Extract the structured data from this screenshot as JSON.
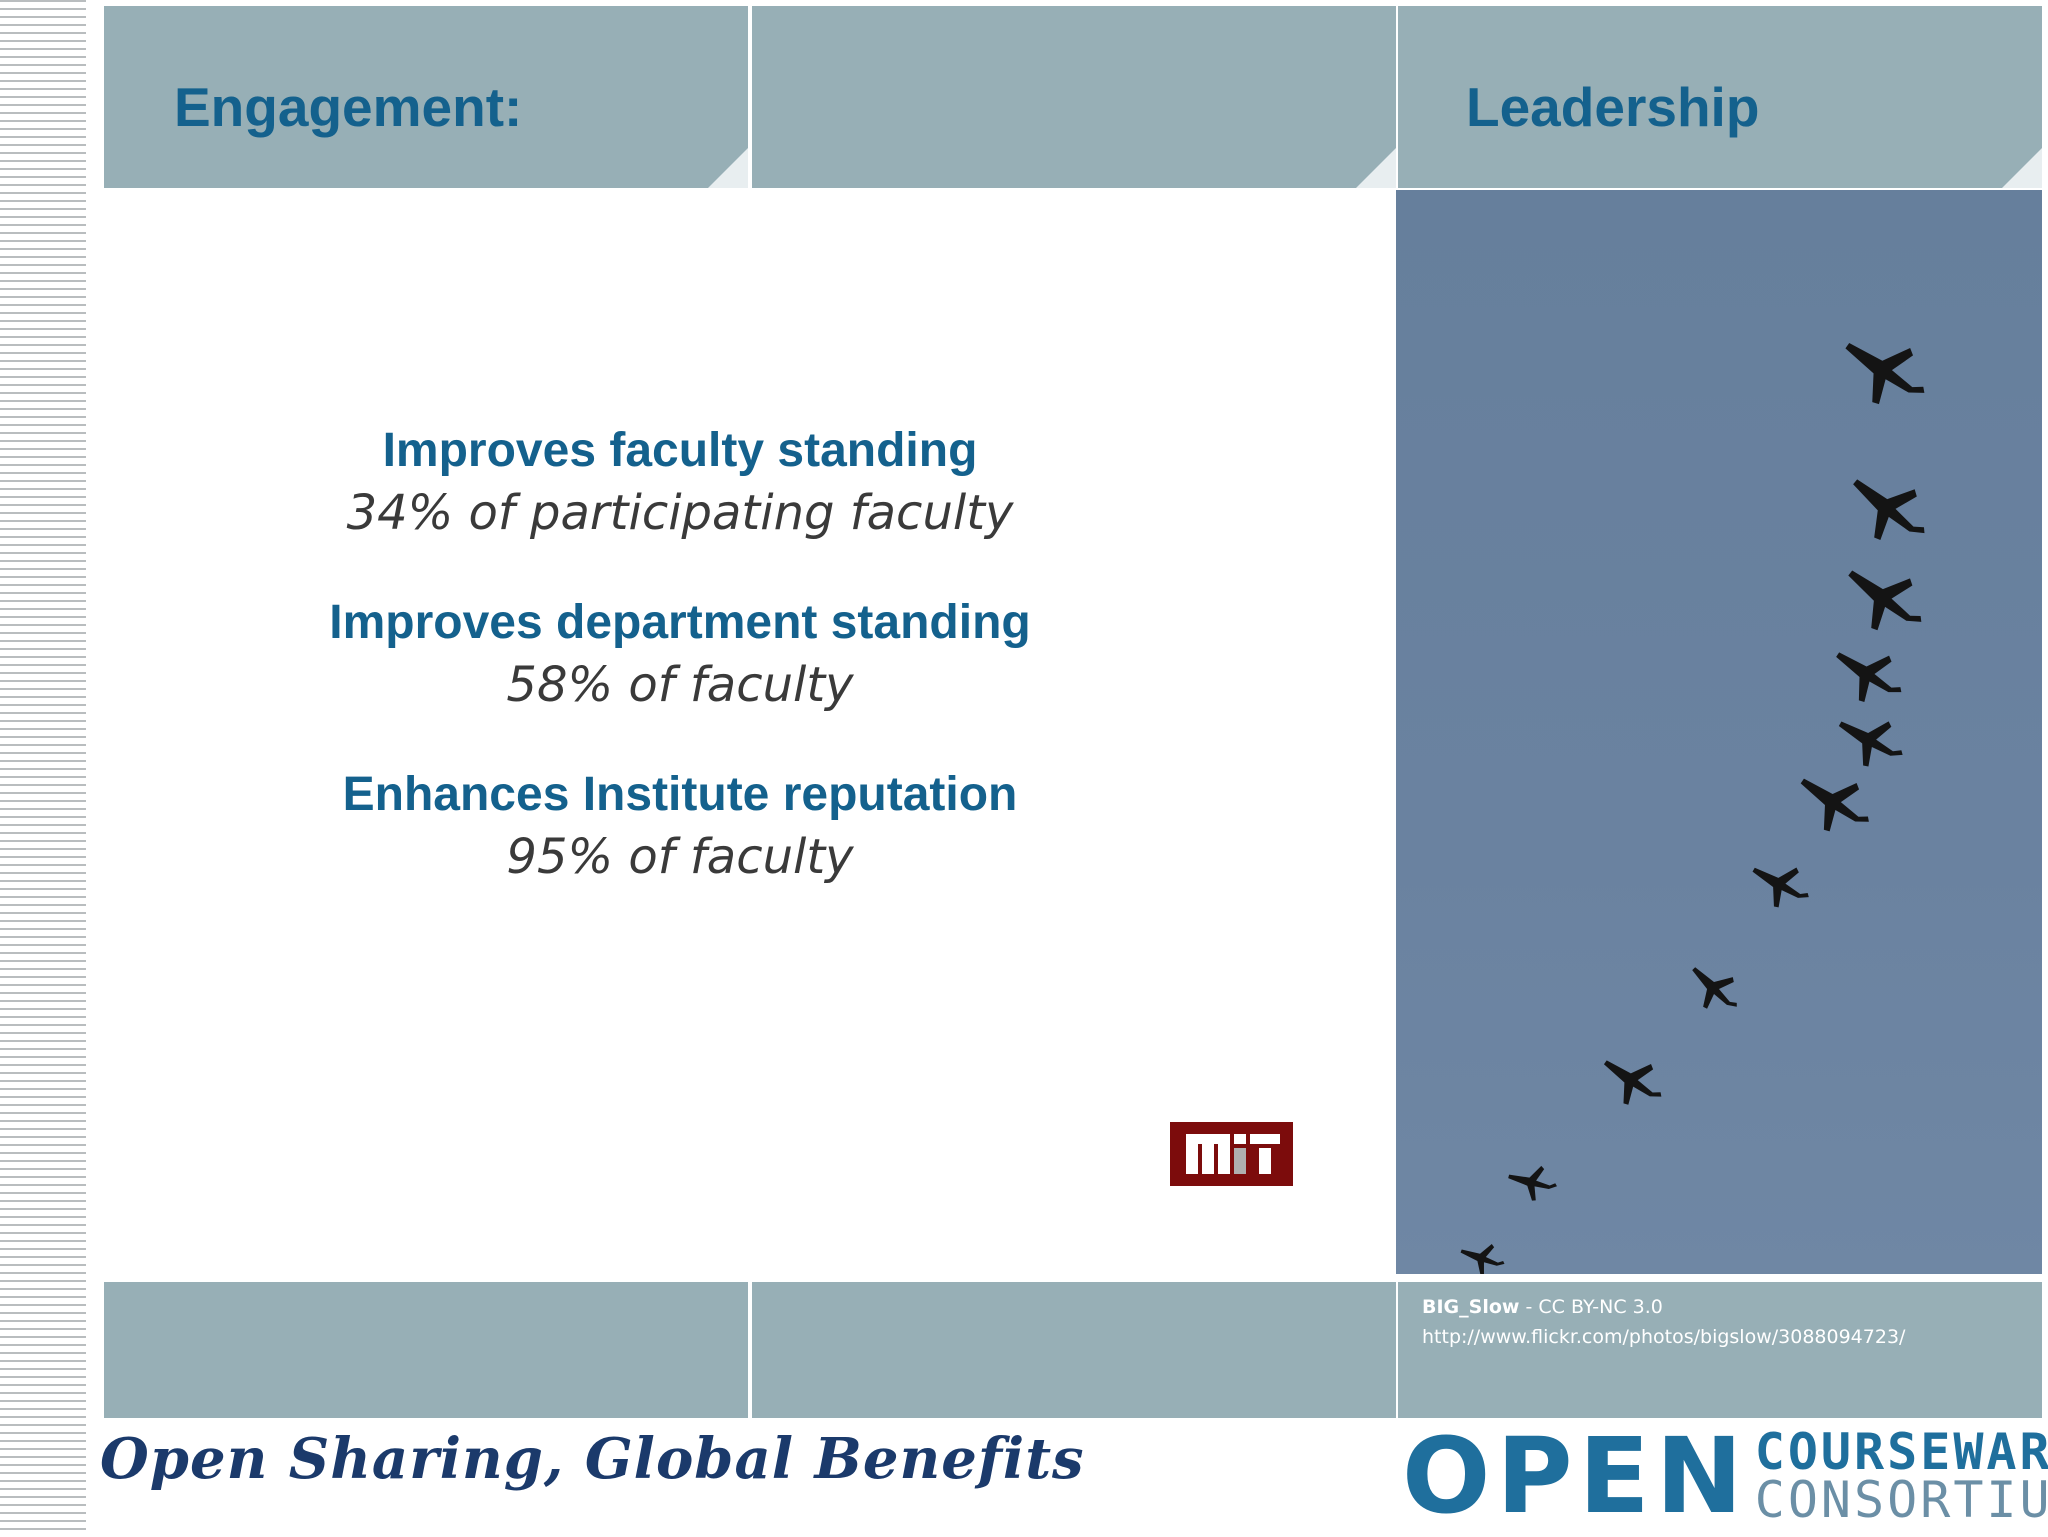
{
  "slide": {
    "header_left": "Engagement:",
    "header_right": "Leadership",
    "stats": [
      {
        "title": "Improves faculty standing",
        "value": "34% of participating faculty"
      },
      {
        "title": "Improves department standing",
        "value": "58% of faculty"
      },
      {
        "title": "Enhances Institute reputation",
        "value": "95% of faculty"
      }
    ],
    "image_credit": {
      "author": "BIG_Slow",
      "license": " - CC BY-NC 3.0",
      "url": "http://www.flickr.com/photos/bigslow/3088094723/"
    },
    "mit_logo_icon": "mit-logo",
    "tagline": "Open Sharing, Global Benefits",
    "ocw_logo": {
      "open": "OPEN",
      "courseware": "COURSEWARE",
      "consortium": "CONSORTIUM"
    }
  },
  "colors": {
    "panel": "#97afb6",
    "title_blue": "#14618d",
    "sky": "#667f9c",
    "mit_red": "#7c0c0c"
  }
}
